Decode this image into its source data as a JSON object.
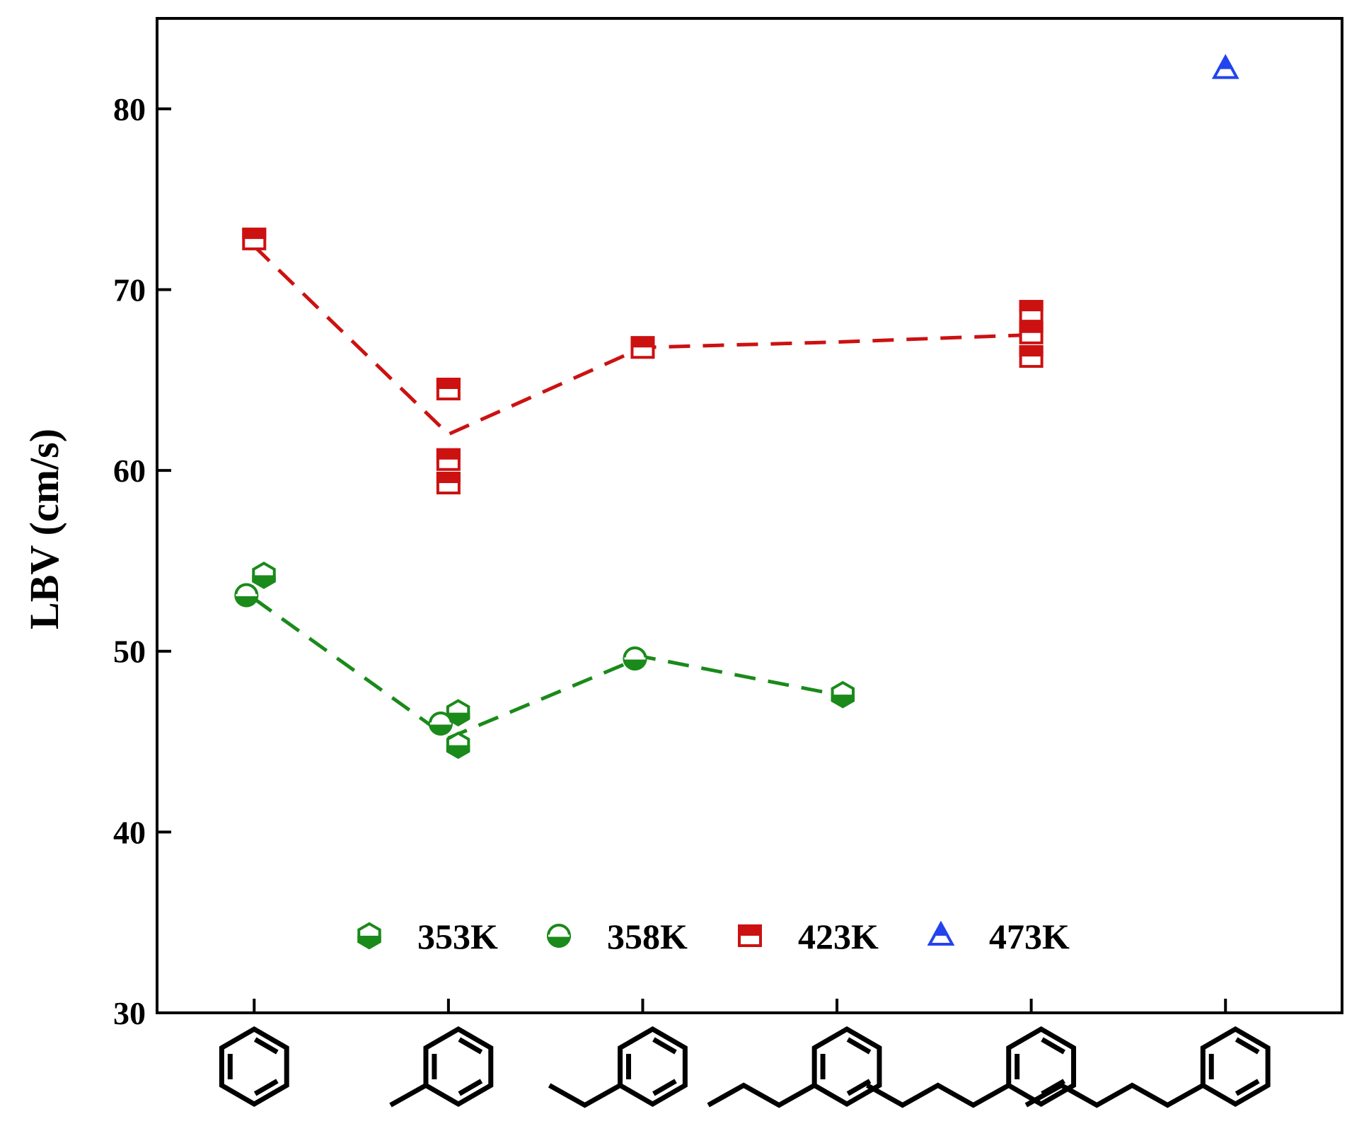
{
  "chart_data": {
    "type": "scatter",
    "title": "",
    "xlabel": "",
    "ylabel": "LBV (cm/s)",
    "ylim": [
      30,
      85
    ],
    "yticks": [
      30,
      40,
      50,
      60,
      70,
      80
    ],
    "xlim": [
      0.5,
      6.6
    ],
    "categories": [
      "benzene",
      "toluene",
      "ethylbenzene",
      "propylbenzene",
      "butylbenzene",
      "pentylbenzene"
    ],
    "category_side_chain_carbons": [
      0,
      1,
      2,
      3,
      4,
      5
    ],
    "legend_position": "lower-center",
    "grid": false,
    "series": [
      {
        "name": "353K",
        "color": "#1a8a1a",
        "marker": "hexagon-half-bottom",
        "points": [
          [
            1.05,
            54.2
          ],
          [
            2.05,
            46.6
          ],
          [
            2.05,
            44.8
          ],
          [
            4.03,
            47.6
          ]
        ]
      },
      {
        "name": "358K",
        "color": "#1a8a1a",
        "marker": "circle-half-bottom",
        "points": [
          [
            0.96,
            53.1
          ],
          [
            1.96,
            46.0
          ],
          [
            2.96,
            49.6
          ]
        ]
      },
      {
        "name": "423K",
        "color": "#cc1111",
        "marker": "square-half-top",
        "points": [
          [
            1.0,
            72.8
          ],
          [
            2.0,
            64.5
          ],
          [
            2.0,
            60.6
          ],
          [
            2.0,
            59.3
          ],
          [
            3.0,
            66.8
          ],
          [
            5.0,
            68.8
          ],
          [
            5.0,
            67.6
          ],
          [
            5.0,
            66.3
          ]
        ]
      },
      {
        "name": "473K",
        "color": "#2244ee",
        "marker": "triangle-half-top",
        "points": [
          [
            6.0,
            82.2
          ]
        ]
      }
    ],
    "fit_lines": [
      {
        "series": "353K/358K",
        "color": "#1a8a1a",
        "style": "dashed",
        "points": [
          [
            1.0,
            52.9
          ],
          [
            2.0,
            45.2
          ],
          [
            3.0,
            49.7
          ],
          [
            4.0,
            47.6
          ]
        ]
      },
      {
        "series": "423K",
        "color": "#cc1111",
        "style": "dashed",
        "points": [
          [
            1.0,
            72.4
          ],
          [
            2.0,
            62.0
          ],
          [
            3.0,
            66.8
          ],
          [
            4.0,
            67.1
          ],
          [
            5.0,
            67.5
          ]
        ]
      }
    ]
  }
}
